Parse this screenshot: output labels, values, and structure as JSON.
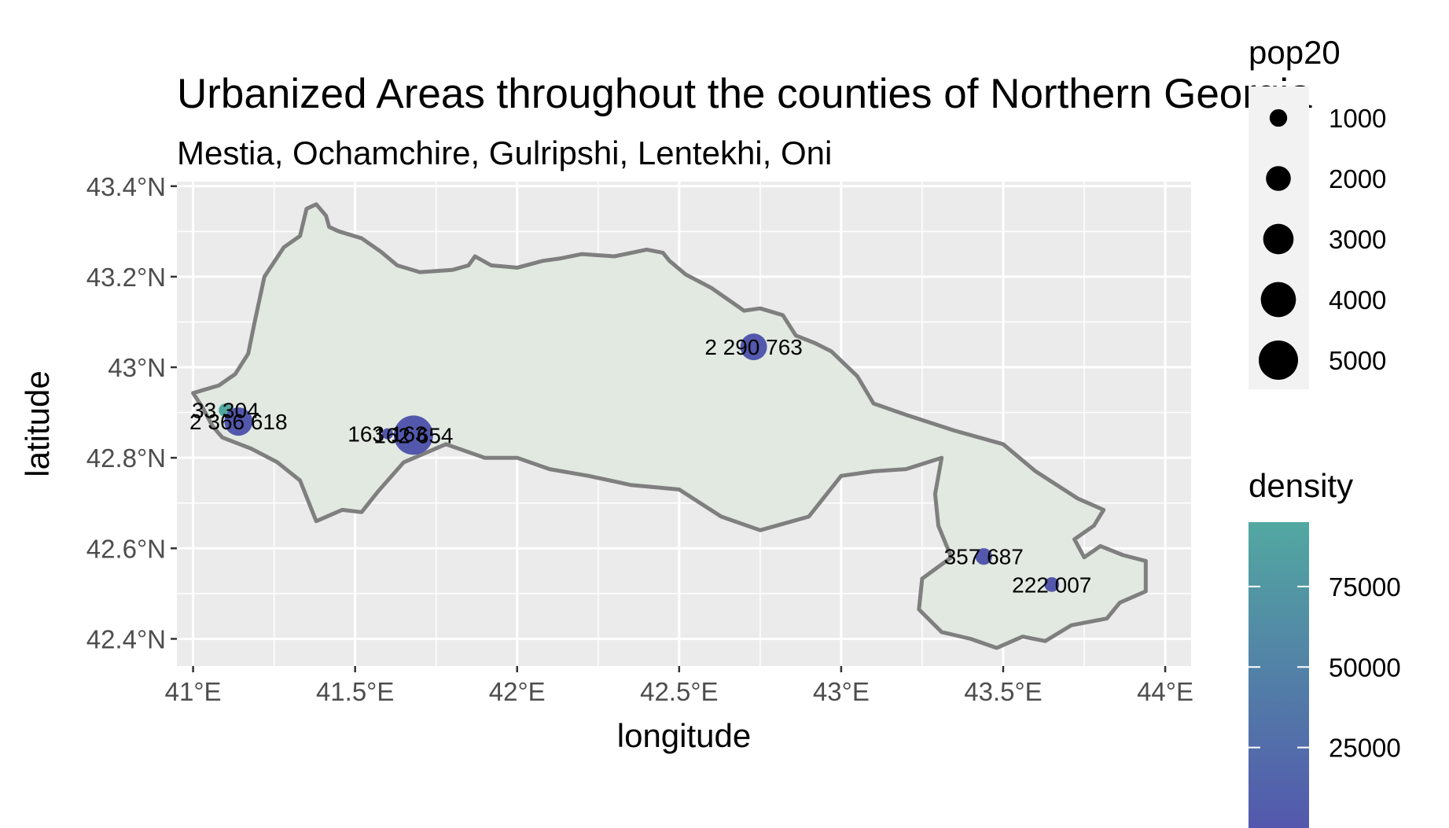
{
  "chart_data": {
    "type": "scatter",
    "title": "Urbanized Areas throughout the counties of Northern Georgia",
    "subtitle": "Mestia, Ochamchire, Gulripshi, Lentekhi, Oni",
    "xlabel": "longitude",
    "ylabel": "latitude",
    "xlim": [
      40.95,
      44.08
    ],
    "ylim": [
      42.34,
      43.41
    ],
    "x_ticks": [
      41.0,
      41.5,
      42.0,
      42.5,
      43.0,
      43.5,
      44.0
    ],
    "x_tick_labels": [
      "41°E",
      "41.5°E",
      "42°E",
      "42.5°E",
      "43°E",
      "43.5°E",
      "44°E"
    ],
    "y_ticks": [
      42.4,
      42.6,
      42.8,
      43.0,
      43.2,
      43.4
    ],
    "y_tick_labels": [
      "42.4°N",
      "42.6°N",
      "42.8°N",
      "43°N",
      "43.2°N",
      "43.4°N"
    ],
    "grid": true,
    "region_fill": "#e1e9e1",
    "region_stroke": "#7f7f7f",
    "panel_background": "#ebebeb",
    "points": [
      {
        "lon": 41.1,
        "lat": 42.905,
        "pop20": 600,
        "density": 90000,
        "label": "33 304",
        "color": "#52a8a1"
      },
      {
        "lon": 41.14,
        "lat": 42.88,
        "pop20": 2600,
        "density": 5000,
        "label": "2 366 618",
        "color": "#5358ad"
      },
      {
        "lon": 41.6,
        "lat": 42.853,
        "pop20": 400,
        "density": 2000,
        "label": "163 163",
        "color": "#5358ad"
      },
      {
        "lon": 41.68,
        "lat": 42.85,
        "pop20": 5000,
        "density": 5000,
        "label": "162 654",
        "color": "#5358ad"
      },
      {
        "lon": 42.73,
        "lat": 43.045,
        "pop20": 2300,
        "density": 5000,
        "label": "2 290 763",
        "color": "#5358ad"
      },
      {
        "lon": 43.44,
        "lat": 42.582,
        "pop20": 900,
        "density": 5000,
        "label": "357 687",
        "color": "#5358ad"
      },
      {
        "lon": 43.65,
        "lat": 42.52,
        "pop20": 700,
        "density": 5000,
        "label": "222 007",
        "color": "#5358ad"
      }
    ],
    "legend_size": {
      "title": "pop20",
      "entries": [
        {
          "label": "1000",
          "value": 1000
        },
        {
          "label": "2000",
          "value": 2000
        },
        {
          "label": "3000",
          "value": 3000
        },
        {
          "label": "4000",
          "value": 4000
        },
        {
          "label": "5000",
          "value": 5000
        }
      ],
      "placement": "right"
    },
    "legend_color": {
      "title": "density",
      "entries": [
        {
          "label": "75000",
          "value": 75000
        },
        {
          "label": "50000",
          "value": 50000
        },
        {
          "label": "25000",
          "value": 25000
        }
      ],
      "range": [
        0,
        95000
      ],
      "color_low": "#5358ad",
      "color_high": "#52a8a1",
      "placement": "right"
    },
    "region_outline": [
      [
        41.0,
        42.943
      ],
      [
        41.08,
        42.96
      ],
      [
        41.13,
        42.985
      ],
      [
        41.17,
        43.03
      ],
      [
        41.19,
        43.1
      ],
      [
        41.22,
        43.2
      ],
      [
        41.28,
        43.265
      ],
      [
        41.33,
        43.29
      ],
      [
        41.35,
        43.35
      ],
      [
        41.38,
        43.36
      ],
      [
        41.41,
        43.335
      ],
      [
        41.42,
        43.31
      ],
      [
        41.45,
        43.3
      ],
      [
        41.52,
        43.285
      ],
      [
        41.58,
        43.255
      ],
      [
        41.63,
        43.225
      ],
      [
        41.7,
        43.21
      ],
      [
        41.8,
        43.215
      ],
      [
        41.85,
        43.225
      ],
      [
        41.87,
        43.245
      ],
      [
        41.92,
        43.225
      ],
      [
        42.0,
        43.22
      ],
      [
        42.08,
        43.235
      ],
      [
        42.13,
        43.24
      ],
      [
        42.2,
        43.25
      ],
      [
        42.3,
        43.245
      ],
      [
        42.4,
        43.26
      ],
      [
        42.45,
        43.253
      ],
      [
        42.47,
        43.235
      ],
      [
        42.52,
        43.205
      ],
      [
        42.6,
        43.175
      ],
      [
        42.66,
        43.145
      ],
      [
        42.7,
        43.125
      ],
      [
        42.75,
        43.13
      ],
      [
        42.82,
        43.115
      ],
      [
        42.86,
        43.07
      ],
      [
        42.92,
        43.053
      ],
      [
        42.97,
        43.035
      ],
      [
        43.05,
        42.98
      ],
      [
        43.1,
        42.92
      ],
      [
        43.2,
        42.895
      ],
      [
        43.35,
        42.86
      ],
      [
        43.5,
        42.83
      ],
      [
        43.6,
        42.77
      ],
      [
        43.73,
        42.71
      ],
      [
        43.81,
        42.685
      ],
      [
        43.78,
        42.65
      ],
      [
        43.72,
        42.62
      ],
      [
        43.75,
        42.58
      ],
      [
        43.8,
        42.605
      ],
      [
        43.87,
        42.585
      ],
      [
        43.94,
        42.572
      ],
      [
        43.94,
        42.505
      ],
      [
        43.86,
        42.48
      ],
      [
        43.82,
        42.445
      ],
      [
        43.71,
        42.43
      ],
      [
        43.63,
        42.395
      ],
      [
        43.56,
        42.405
      ],
      [
        43.48,
        42.38
      ],
      [
        43.4,
        42.4
      ],
      [
        43.31,
        42.415
      ],
      [
        43.24,
        42.465
      ],
      [
        43.25,
        42.533
      ],
      [
        43.34,
        42.58
      ],
      [
        43.3,
        42.65
      ],
      [
        43.29,
        42.72
      ],
      [
        43.31,
        42.8
      ],
      [
        43.2,
        42.775
      ],
      [
        43.1,
        42.77
      ],
      [
        43.0,
        42.76
      ],
      [
        42.9,
        42.67
      ],
      [
        42.75,
        42.64
      ],
      [
        42.63,
        42.67
      ],
      [
        42.5,
        42.73
      ],
      [
        42.35,
        42.74
      ],
      [
        42.22,
        42.76
      ],
      [
        42.1,
        42.775
      ],
      [
        42.0,
        42.8
      ],
      [
        41.9,
        42.8
      ],
      [
        41.78,
        42.83
      ],
      [
        41.65,
        42.79
      ],
      [
        41.57,
        42.725
      ],
      [
        41.52,
        42.68
      ],
      [
        41.46,
        42.685
      ],
      [
        41.38,
        42.66
      ],
      [
        41.33,
        42.75
      ],
      [
        41.26,
        42.79
      ],
      [
        41.18,
        42.82
      ],
      [
        41.09,
        42.845
      ],
      [
        41.06,
        42.87
      ],
      [
        41.03,
        42.91
      ],
      [
        41.0,
        42.943
      ]
    ]
  }
}
